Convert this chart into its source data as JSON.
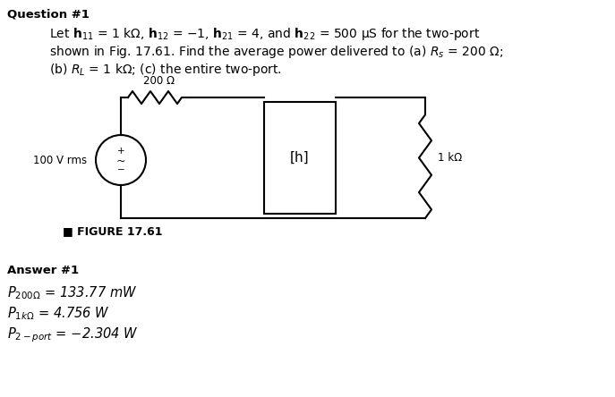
{
  "title": "Question #1",
  "q_line1": "Let $\\mathbf{h}_{11}$ = 1 kΩ, $\\mathbf{h}_{12}$ = −1, $\\mathbf{h}_{21}$ = 4, and $\\mathbf{h}_{22}$ = 500 μS for the two-port",
  "q_line2": "shown in Fig. 17.61. Find the average power delivered to (a) $R_s$ = 200 Ω;",
  "q_line3": "(b) $R_L$ = 1 kΩ; (c) the entire two-port.",
  "figure_label": "■ FIGURE 17.61",
  "answer_title": "Answer #1",
  "ans1": "$P_{200\\Omega}$ = 133.77 mW",
  "ans2": "$P_{1k\\Omega}$ = 4.756 W",
  "ans3": "$P_{2-port}$ = −2.304 W",
  "src_label": "100 V rms",
  "res_label": "200 Ω",
  "h_label": "[h]",
  "load_label": "1 kΩ",
  "bg_color": "#ffffff",
  "lc": "#000000",
  "title_fs": 9.5,
  "body_fs": 10,
  "ans_fs": 10.5,
  "circ_fs": 8.5,
  "fig_label_fs": 9
}
